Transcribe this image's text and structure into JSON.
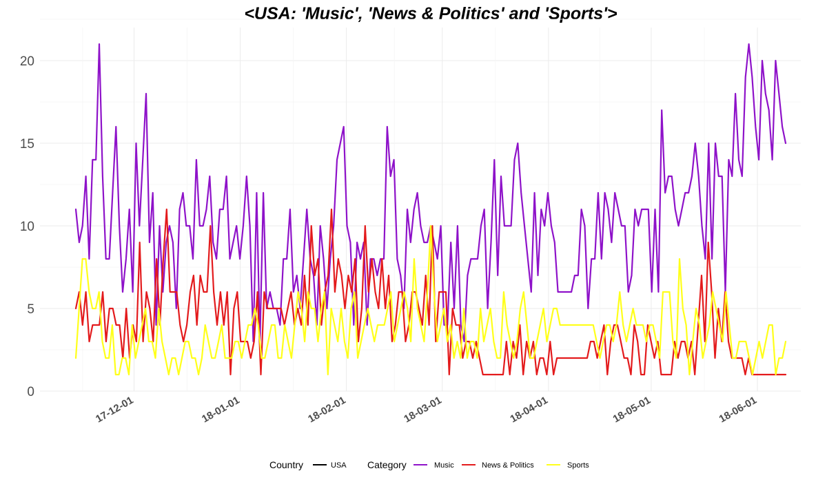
{
  "chart_data": {
    "type": "line",
    "title": "<USA: 'Music', 'News & Politics' and 'Sports'>",
    "xlabel": "",
    "ylabel": "",
    "x_start": "17-11-14",
    "x_ticks": [
      "17-12-01",
      "18-01-01",
      "18-02-01",
      "18-03-01",
      "18-04-01",
      "18-05-01",
      "18-06-01"
    ],
    "y_ticks": [
      "0",
      "5",
      "10",
      "15",
      "20"
    ],
    "ylim": [
      0,
      22
    ],
    "grid": true,
    "legend": {
      "placement": "bottom",
      "groups": [
        {
          "title": "Country",
          "items": [
            {
              "label": "USA",
              "color": "#000000"
            }
          ]
        },
        {
          "title": "Category",
          "items": [
            {
              "label": "Music",
              "color": "#8e12c9"
            },
            {
              "label": "News & Politics",
              "color": "#e31a1c"
            },
            {
              "label": "Sports",
              "color": "#ffff1a"
            }
          ]
        }
      ]
    },
    "series": [
      {
        "name": "Music",
        "color": "#8e12c9",
        "values": [
          11,
          9,
          10,
          13,
          8,
          14,
          14,
          21,
          13,
          8,
          8,
          12,
          16,
          10,
          6,
          8,
          11,
          6,
          15,
          10,
          14,
          18,
          9,
          12,
          4,
          10,
          6,
          9,
          10,
          9,
          5,
          11,
          12,
          10,
          10,
          8,
          14,
          10,
          10,
          11,
          13,
          9,
          8,
          11,
          11,
          13,
          8,
          9,
          10,
          8,
          10,
          13,
          10,
          3,
          12,
          3,
          12,
          5,
          6,
          5,
          5,
          4,
          8,
          8,
          11,
          6,
          7,
          5,
          8,
          11,
          8,
          7,
          4,
          10,
          8,
          5,
          8,
          10,
          14,
          15,
          16,
          10,
          9,
          4,
          9,
          8,
          9,
          4,
          8,
          8,
          7,
          8,
          8,
          16,
          13,
          14,
          8,
          7,
          5,
          11,
          9,
          11,
          12,
          10,
          9,
          9,
          10,
          9,
          8,
          10,
          4,
          4,
          9,
          5,
          10,
          4,
          3,
          7,
          8,
          8,
          8,
          10,
          11,
          5,
          9,
          14,
          7,
          13,
          10,
          10,
          10,
          14,
          15,
          12,
          10,
          8,
          6,
          12,
          7,
          11,
          10,
          12,
          10,
          9,
          6,
          6,
          6,
          6,
          6,
          7,
          7,
          11,
          10,
          5,
          8,
          8,
          12,
          8,
          12,
          11,
          9,
          12,
          11,
          10,
          10,
          6,
          7,
          11,
          10,
          11,
          11,
          11,
          6,
          11,
          6,
          17,
          12,
          13,
          13,
          11,
          10,
          11,
          12,
          12,
          13,
          15,
          13,
          10,
          8,
          15,
          8,
          15,
          13,
          13,
          6,
          14,
          13,
          18,
          14,
          13,
          19,
          21,
          19,
          16,
          14,
          20,
          18,
          17,
          14,
          20,
          18,
          16,
          15
        ]
      },
      {
        "name": "News & Politics",
        "color": "#e31a1c",
        "values": [
          5,
          6,
          4,
          6,
          3,
          4,
          4,
          4,
          6,
          3,
          5,
          5,
          4,
          4,
          2,
          5,
          2,
          4,
          3,
          9,
          3,
          6,
          5,
          3,
          8,
          4,
          8,
          11,
          6,
          6,
          6,
          4,
          3,
          4,
          6,
          7,
          4,
          7,
          6,
          6,
          10,
          6,
          4,
          6,
          4,
          6,
          1,
          5,
          6,
          3,
          3,
          3,
          2,
          3,
          6,
          1,
          6,
          5,
          5,
          5,
          5,
          5,
          4,
          5,
          6,
          4,
          5,
          4,
          7,
          4,
          10,
          7,
          8,
          4,
          6,
          7,
          11,
          6,
          8,
          7,
          5,
          7,
          6,
          8,
          3,
          5,
          10,
          6,
          8,
          6,
          5,
          8,
          5,
          7,
          3,
          4,
          6,
          6,
          3,
          4,
          6,
          6,
          5,
          4,
          7,
          4,
          10,
          3,
          6,
          6,
          6,
          1,
          5,
          4,
          4,
          2,
          3,
          3,
          2,
          3,
          2,
          1,
          1,
          1,
          1,
          1,
          1,
          1,
          3,
          1,
          3,
          2,
          4,
          1,
          3,
          2,
          3,
          1,
          2,
          2,
          1,
          3,
          1,
          2,
          2,
          2,
          2,
          2,
          2,
          2,
          2,
          2,
          2,
          3,
          3,
          2,
          3,
          4,
          1,
          3,
          4,
          4,
          3,
          2,
          2,
          1,
          4,
          3,
          1,
          1,
          4,
          3,
          2,
          3,
          1,
          1,
          1,
          1,
          3,
          2,
          3,
          3,
          2,
          3,
          1,
          4,
          7,
          3,
          9,
          6,
          2,
          5,
          3,
          6,
          3,
          2,
          2,
          2,
          2,
          1,
          2,
          1,
          1,
          1,
          1,
          1,
          1,
          1,
          1,
          1,
          1,
          1
        ]
      },
      {
        "name": "Sports",
        "color": "#ffff1a",
        "values": [
          2,
          5,
          8,
          8,
          6,
          5,
          5,
          6,
          3,
          2,
          2,
          4,
          1,
          1,
          2,
          2,
          1,
          4,
          2,
          3,
          4,
          5,
          3,
          3,
          2,
          5,
          3,
          2,
          1,
          2,
          2,
          1,
          2,
          3,
          3,
          2,
          2,
          1,
          2,
          4,
          3,
          2,
          2,
          3,
          4,
          2,
          2,
          2,
          3,
          3,
          2,
          3,
          4,
          4,
          5,
          4,
          2,
          2,
          3,
          4,
          4,
          2,
          2,
          4,
          3,
          2,
          4,
          6,
          5,
          3,
          6,
          5,
          5,
          3,
          5,
          6,
          1,
          5,
          4,
          3,
          5,
          3,
          2,
          5,
          6,
          2,
          3,
          4,
          5,
          4,
          3,
          4,
          4,
          4,
          5,
          6,
          3,
          4,
          5,
          6,
          5,
          3,
          8,
          5,
          4,
          3,
          6,
          10,
          6,
          3,
          4,
          5,
          3,
          4,
          2,
          3,
          2,
          5,
          2,
          3,
          3,
          2,
          5,
          3,
          4,
          5,
          3,
          2,
          2,
          6,
          4,
          3,
          2,
          3,
          5,
          6,
          4,
          2,
          2,
          3,
          4,
          5,
          3,
          4,
          5,
          5,
          4,
          4,
          4,
          4,
          4,
          4,
          4,
          4,
          4,
          4,
          4,
          3,
          2,
          3,
          4,
          4,
          3,
          4,
          6,
          4,
          3,
          4,
          5,
          4,
          4,
          4,
          3,
          4,
          4,
          3,
          2,
          6,
          6,
          6,
          3,
          2,
          8,
          5,
          4,
          1,
          3,
          5,
          4,
          2,
          3,
          4,
          6,
          5,
          4,
          3,
          6,
          4,
          2,
          2,
          3,
          3,
          3,
          2,
          1,
          2,
          3,
          2,
          3,
          4,
          4,
          1,
          2,
          2,
          3
        ]
      }
    ]
  }
}
